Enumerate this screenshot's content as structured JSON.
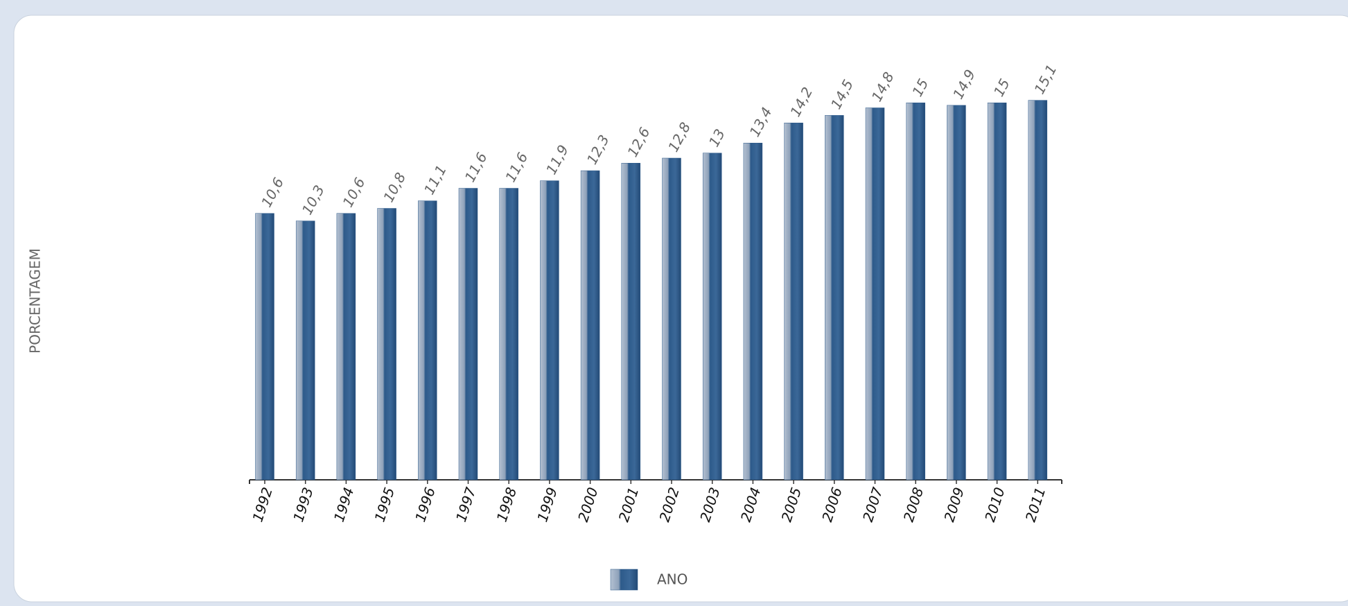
{
  "chart_data": {
    "type": "bar",
    "y_label": "PORCENTAGEM",
    "categories": [
      "1992",
      "1993",
      "1994",
      "1995",
      "1996",
      "1997",
      "1998",
      "1999",
      "2000",
      "2001",
      "2002",
      "2003",
      "2004",
      "2005",
      "2006",
      "2007",
      "2008",
      "2009",
      "2010",
      "2011"
    ],
    "series": [
      {
        "name": "ANO",
        "color": "#2d5a8a",
        "values": [
          10.6,
          10.3,
          10.6,
          10.8,
          11.1,
          11.6,
          11.6,
          11.9,
          12.3,
          12.6,
          12.8,
          13,
          13.4,
          14.2,
          14.5,
          14.8,
          15,
          14.9,
          15,
          15.1
        ],
        "value_labels": [
          "10,6",
          "10,3",
          "10,6",
          "10,8",
          "11,1",
          "11,6",
          "11,6",
          "11,9",
          "12,3",
          "12,6",
          "12,8",
          "13",
          "13,4",
          "14,2",
          "14,5",
          "14,8",
          "15",
          "14,9",
          "15",
          "15,1"
        ]
      }
    ],
    "ylim": [
      0,
      16
    ],
    "legend": "bottom"
  }
}
